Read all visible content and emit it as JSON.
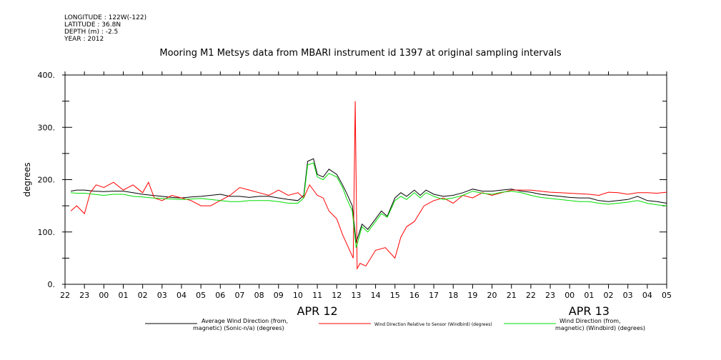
{
  "meta": {
    "longitude": "LONGITUDE : 122W(-122)",
    "latitude": "LATITUDE : 36.8N",
    "depth": "DEPTH (m) : -2.5",
    "year": "YEAR : 2012"
  },
  "chart_data": {
    "type": "line",
    "title": "Mooring M1 Metsys data from MBARI instrument id 1397 at original sampling intervals",
    "ylabel": "degrees",
    "ylim": [
      0,
      400
    ],
    "yticks": [
      0,
      100,
      200,
      300,
      400
    ],
    "ytick_labels": [
      "0.",
      "100.",
      "200.",
      "300.",
      "400."
    ],
    "x_unit": "hours since 22:00 Apr 11, 2012",
    "xlim": [
      0,
      31
    ],
    "xtick_labels": [
      "22",
      "23",
      "00",
      "01",
      "02",
      "03",
      "04",
      "05",
      "06",
      "07",
      "08",
      "09",
      "10",
      "11",
      "12",
      "13",
      "14",
      "15",
      "16",
      "17",
      "18",
      "19",
      "20",
      "21",
      "22",
      "23",
      "00",
      "01",
      "02",
      "03",
      "04",
      "05"
    ],
    "date_labels": [
      {
        "text": "APR 12",
        "hour": 13
      },
      {
        "text": "APR 13",
        "hour": 27
      }
    ],
    "grid": false,
    "legend_placement": "bottom",
    "series": [
      {
        "name": "Average Wind Direction (from, magnetic) (Sonic-n/a) (degrees)",
        "color": "#000000",
        "x": [
          0.3,
          0.6,
          1,
          1.5,
          2,
          2.5,
          3,
          3.5,
          4,
          4.5,
          5,
          5.5,
          6,
          6.5,
          7,
          7.5,
          8,
          8.5,
          9,
          9.5,
          10,
          10.5,
          11,
          11.5,
          12,
          12.3,
          12.5,
          12.8,
          13,
          13.3,
          13.6,
          14,
          14.3,
          14.5,
          14.8,
          15,
          15.3,
          15.6,
          16,
          16.3,
          16.6,
          17,
          17.3,
          17.6,
          18,
          18.3,
          18.6,
          19,
          19.5,
          20,
          20.5,
          21,
          21.5,
          22,
          22.5,
          23,
          23.5,
          24,
          24.5,
          25,
          25.5,
          26,
          26.5,
          27,
          27.5,
          28,
          28.5,
          29,
          29.5,
          30,
          30.5,
          31
        ],
        "y": [
          178,
          180,
          180,
          178,
          177,
          178,
          178,
          175,
          172,
          170,
          168,
          166,
          165,
          167,
          168,
          170,
          172,
          168,
          168,
          166,
          168,
          168,
          165,
          162,
          160,
          170,
          235,
          240,
          210,
          205,
          220,
          210,
          190,
          175,
          150,
          80,
          115,
          105,
          125,
          140,
          130,
          165,
          175,
          168,
          180,
          170,
          180,
          172,
          168,
          170,
          175,
          182,
          178,
          178,
          180,
          182,
          178,
          176,
          172,
          170,
          168,
          166,
          165,
          165,
          160,
          158,
          160,
          162,
          168,
          160,
          158,
          155
        ]
      },
      {
        "name": "Wind Direction Relative to Sensor (Windbird) (degrees)",
        "color": "#ff0000",
        "x": [
          0.3,
          0.6,
          1,
          1.3,
          1.6,
          2,
          2.5,
          3,
          3.5,
          4,
          4.3,
          4.6,
          5,
          5.5,
          6,
          6.5,
          7,
          7.5,
          8,
          8.5,
          9,
          9.5,
          10,
          10.5,
          11,
          11.5,
          12,
          12.3,
          12.6,
          13,
          13.3,
          13.6,
          14,
          14.3,
          14.6,
          14.85,
          14.95,
          15.05,
          15.2,
          15.5,
          16,
          16.5,
          17,
          17.3,
          17.6,
          18,
          18.5,
          19,
          19.5,
          20,
          20.5,
          21,
          21.5,
          22,
          22.5,
          23,
          23.5,
          24,
          24.5,
          25,
          25.5,
          26,
          26.5,
          27,
          27.5,
          28,
          28.5,
          29,
          29.5,
          30,
          30.5,
          31
        ],
        "y": [
          140,
          150,
          135,
          175,
          190,
          185,
          195,
          180,
          190,
          175,
          195,
          165,
          160,
          170,
          165,
          160,
          150,
          150,
          160,
          170,
          185,
          180,
          175,
          170,
          180,
          170,
          175,
          165,
          190,
          170,
          165,
          140,
          125,
          95,
          70,
          50,
          350,
          30,
          40,
          35,
          65,
          70,
          50,
          90,
          110,
          120,
          150,
          160,
          165,
          155,
          170,
          165,
          175,
          170,
          175,
          180,
          180,
          180,
          178,
          176,
          175,
          174,
          173,
          172,
          170,
          176,
          175,
          172,
          175,
          175,
          174,
          176
        ]
      },
      {
        "name": "Wind Direction (from, magnetic) (Windbird) (degrees)",
        "color": "#00dd00",
        "x": [
          0.3,
          0.6,
          1,
          1.5,
          2,
          2.5,
          3,
          3.5,
          4,
          4.5,
          5,
          5.5,
          6,
          6.5,
          7,
          7.5,
          8,
          8.5,
          9,
          9.5,
          10,
          10.5,
          11,
          11.5,
          12,
          12.3,
          12.5,
          12.8,
          13,
          13.3,
          13.6,
          14,
          14.3,
          14.5,
          14.8,
          15,
          15.3,
          15.6,
          16,
          16.3,
          16.6,
          17,
          17.3,
          17.6,
          18,
          18.3,
          18.6,
          19,
          19.5,
          20,
          20.5,
          21,
          21.5,
          22,
          22.5,
          23,
          23.5,
          24,
          24.5,
          25,
          25.5,
          26,
          26.5,
          27,
          27.5,
          28,
          28.5,
          29,
          29.5,
          30,
          30.5,
          31
        ],
        "y": [
          175,
          174,
          174,
          172,
          170,
          172,
          172,
          168,
          167,
          165,
          164,
          163,
          162,
          163,
          164,
          162,
          160,
          158,
          158,
          160,
          160,
          160,
          158,
          155,
          155,
          165,
          228,
          232,
          205,
          200,
          212,
          205,
          185,
          165,
          140,
          70,
          110,
          100,
          120,
          135,
          128,
          160,
          168,
          162,
          175,
          165,
          175,
          168,
          162,
          165,
          170,
          178,
          174,
          172,
          176,
          178,
          175,
          170,
          166,
          164,
          162,
          160,
          158,
          158,
          155,
          153,
          155,
          157,
          160,
          155,
          152,
          150
        ]
      }
    ]
  }
}
